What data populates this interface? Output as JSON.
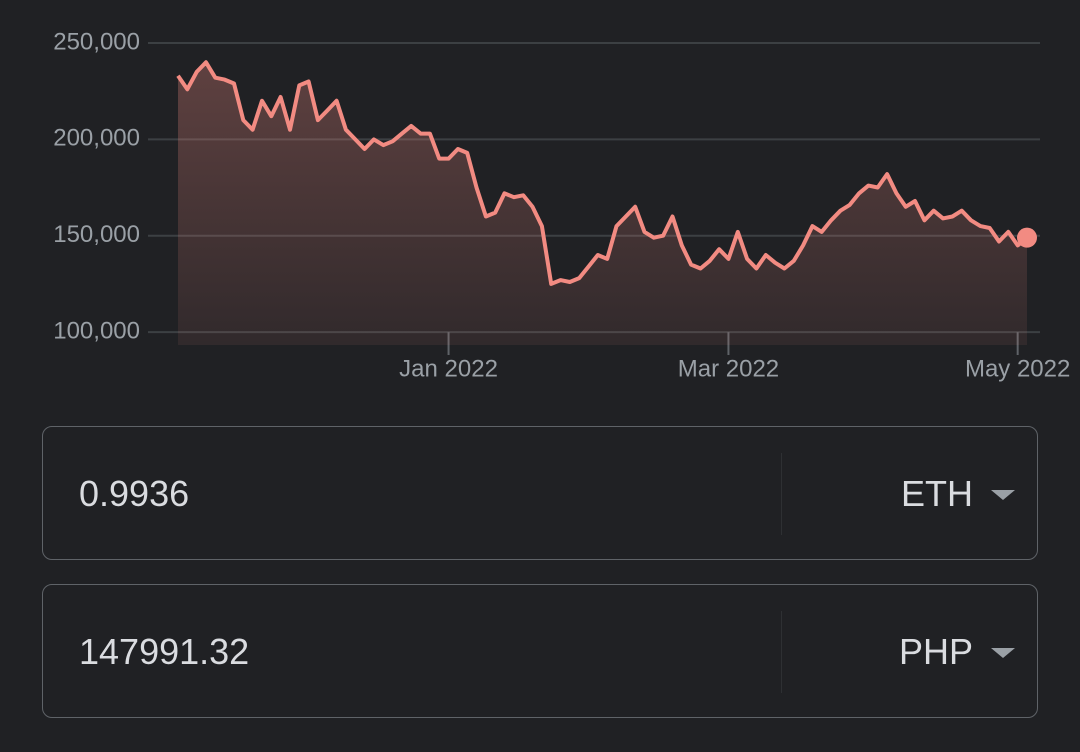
{
  "chart_data": {
    "type": "area",
    "categories": [
      null,
      null,
      null,
      null,
      null,
      null,
      null,
      null,
      null,
      null,
      null,
      null,
      null,
      null,
      null,
      null,
      null,
      null,
      null,
      null,
      null,
      null,
      null,
      null,
      null,
      null,
      null,
      null,
      null,
      "Jan 2022",
      null,
      null,
      null,
      null,
      null,
      null,
      null,
      null,
      null,
      null,
      null,
      null,
      null,
      null,
      null,
      null,
      null,
      null,
      null,
      null,
      null,
      null,
      null,
      null,
      null,
      null,
      null,
      null,
      null,
      "Mar 2022",
      null,
      null,
      null,
      null,
      null,
      null,
      null,
      null,
      null,
      null,
      null,
      null,
      null,
      null,
      null,
      null,
      null,
      null,
      null,
      null,
      null,
      null,
      null,
      null,
      null,
      null,
      null,
      null,
      null,
      null,
      "May 2022",
      null
    ],
    "values": [
      233000,
      226000,
      235000,
      240000,
      232000,
      231000,
      229000,
      210000,
      205000,
      220000,
      212000,
      222000,
      205000,
      228000,
      230000,
      210000,
      215000,
      220000,
      205000,
      200000,
      195000,
      200000,
      197000,
      199000,
      203000,
      207000,
      203000,
      203000,
      190000,
      190000,
      195000,
      193000,
      175000,
      160000,
      162000,
      172000,
      170000,
      171000,
      165000,
      155000,
      125000,
      127000,
      126000,
      128000,
      134000,
      140000,
      138000,
      155000,
      160000,
      165000,
      152000,
      149000,
      150000,
      160000,
      145000,
      135000,
      133000,
      137000,
      143000,
      138000,
      152000,
      138000,
      133000,
      140000,
      136000,
      133000,
      137000,
      145000,
      155000,
      152000,
      158000,
      163000,
      166000,
      172000,
      176000,
      175000,
      182000,
      172000,
      165000,
      168000,
      158000,
      163000,
      159000,
      160000,
      163000,
      158000,
      155000,
      154000,
      147000,
      152000,
      145000,
      149000
    ],
    "color": "#f28b82",
    "ylim": [
      93300,
      250000
    ],
    "yticks": [
      {
        "value": 100000,
        "label": "100,000"
      },
      {
        "value": 150000,
        "label": "150,000"
      },
      {
        "value": 200000,
        "label": "200,000"
      },
      {
        "value": 250000,
        "label": "250,000"
      }
    ],
    "grid": true
  },
  "converter": {
    "from": {
      "amount": "0.9936",
      "unit": "ETH"
    },
    "to": {
      "amount": "147991.32",
      "unit": "PHP"
    }
  }
}
